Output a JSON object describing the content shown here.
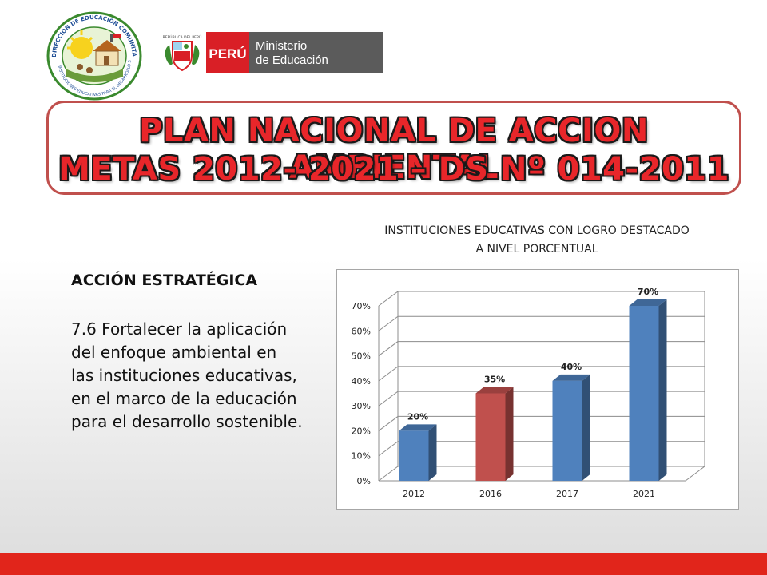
{
  "header": {
    "left_logo": {
      "icon": "community-environmental-education-seal-icon",
      "arc_text_top": "DIRECCIÓN DE EDUCACIÓN COMUNITARIA Y AMBIENTAL",
      "arc_text_bottom": "INSTITUCIONES EDUCATIVAS PARA EL DESARROLLO SOSTENIBLE"
    },
    "government_logo": {
      "icon": "peru-coat-of-arms-icon",
      "shield_caption": "REPÚBLICA DEL PERÚ",
      "country": "PERÚ",
      "ministry_line1": "Ministerio",
      "ministry_line2": "de Educación",
      "colors": {
        "red": "#d91f26",
        "gray": "#5b5b5b"
      }
    }
  },
  "title": {
    "line1": "PLAN NACIONAL DE ACCION AMBIENTAL",
    "line2": "METAS 2012- 2021 – DS Nº 014-2011",
    "color": "#e8262a",
    "border_color": "#c0504d"
  },
  "section": {
    "heading": "ACCIÓN ESTRATÉGICA",
    "body": "7.6 Fortalecer la aplicación del enfoque ambiental en las instituciones educativas, en el marco de la educación para el desarrollo sostenible."
  },
  "chart_title": {
    "line1": "INSTITUCIONES EDUCATIVAS CON LOGRO DESTACADO",
    "line2": "A NIVEL PORCENTUAL"
  },
  "chart_data": {
    "type": "bar",
    "categories": [
      "2012",
      "2016",
      "2017",
      "2021"
    ],
    "values": [
      20,
      35,
      40,
      70
    ],
    "data_labels": [
      "20%",
      "35%",
      "40%",
      "70%"
    ],
    "bar_colors": [
      "#4f81bd",
      "#c0504d",
      "#4f81bd",
      "#4f81bd"
    ],
    "ytick_labels": [
      "0%",
      "10%",
      "20%",
      "30%",
      "40%",
      "50%",
      "60%",
      "70%"
    ],
    "ylim": [
      0,
      70
    ],
    "grid": true,
    "style": "3d",
    "title": "",
    "xlabel": "",
    "ylabel": ""
  },
  "footer": {
    "bar_color": "#e1251b"
  }
}
